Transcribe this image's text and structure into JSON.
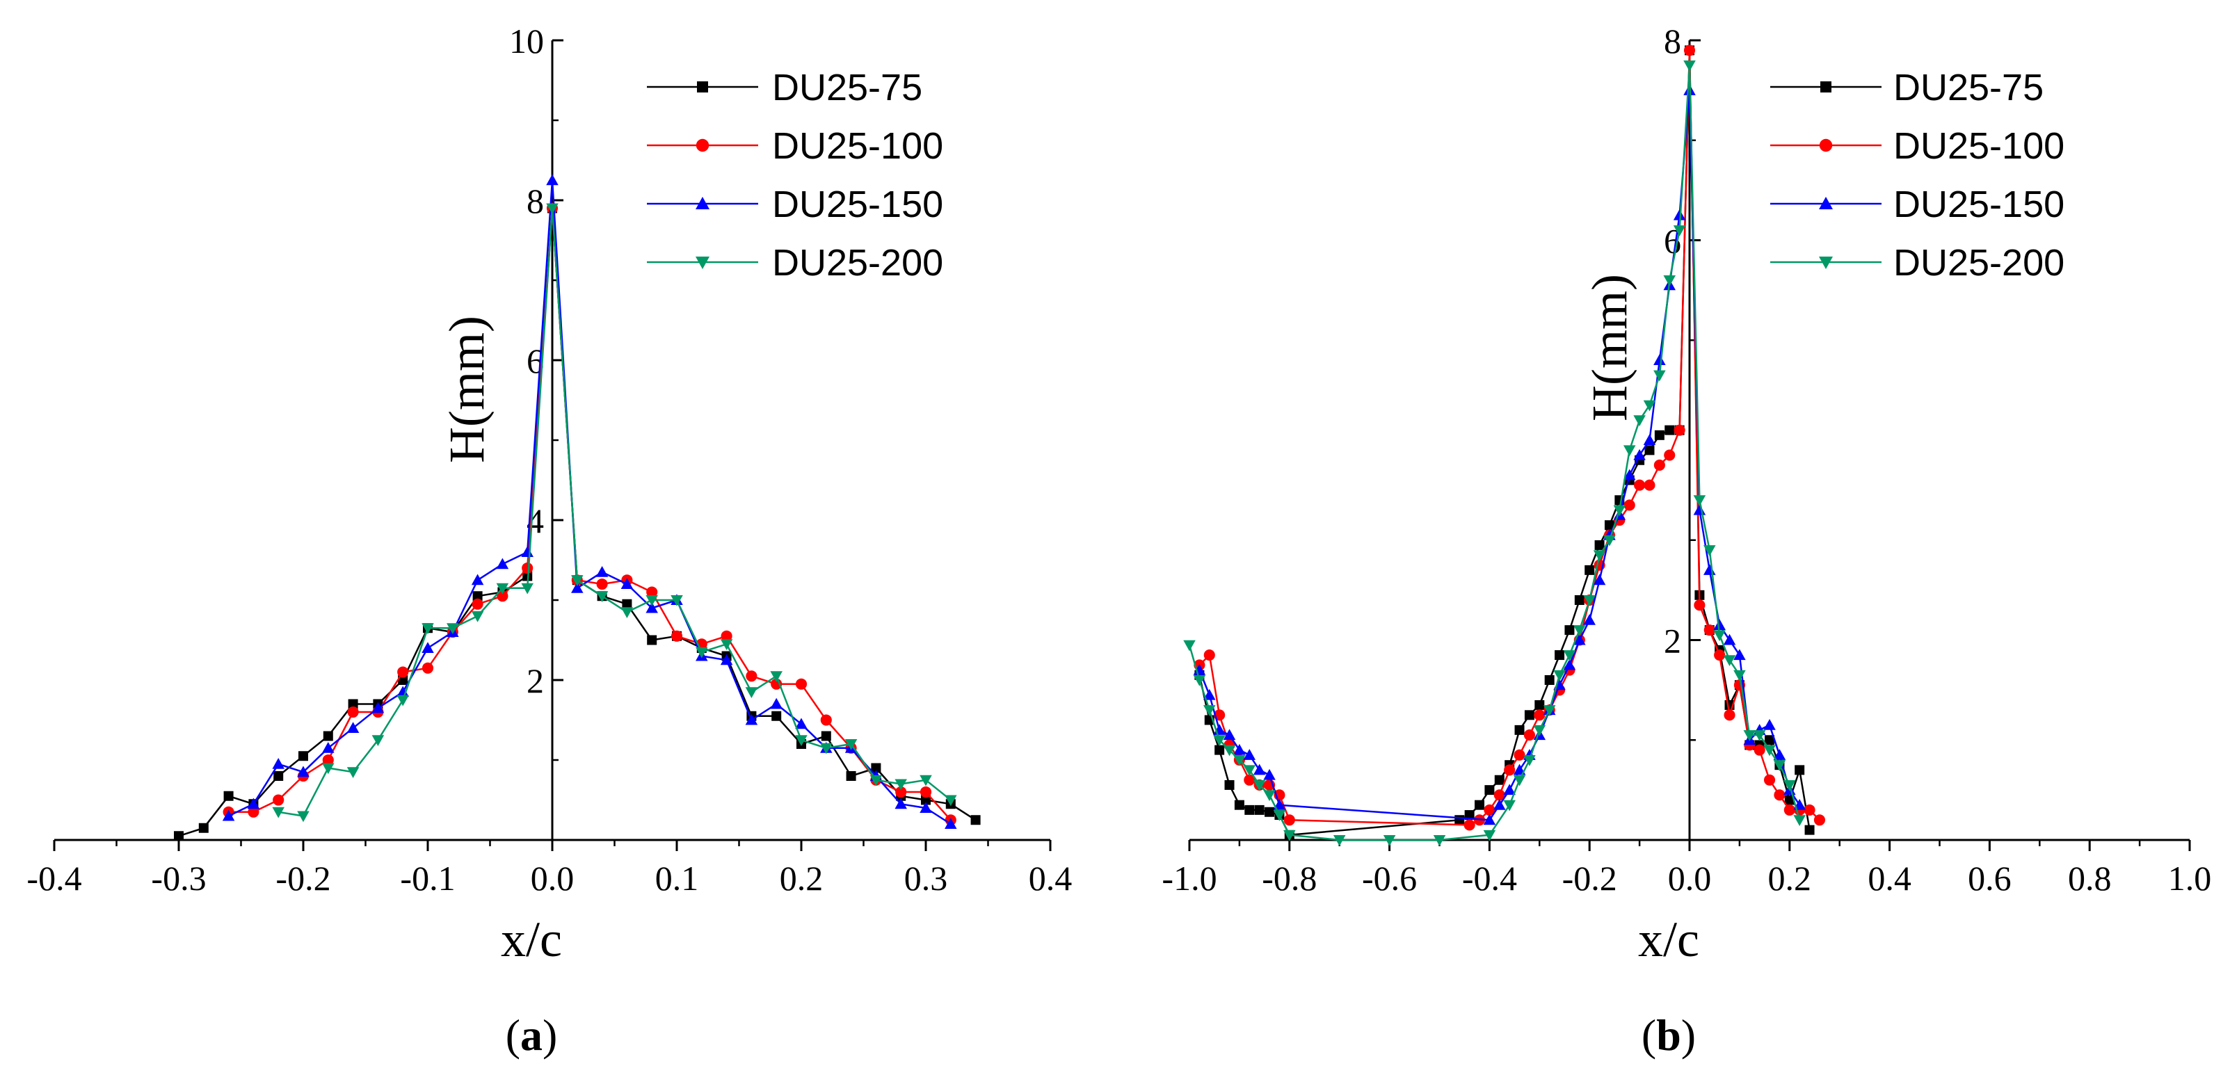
{
  "chart_data": [
    {
      "type": "line",
      "panel_label": "(a)",
      "panel_letter": "a",
      "xlabel": "x/c",
      "ylabel": "H(mm)",
      "xlim": [
        -0.4,
        0.4
      ],
      "ylim": [
        0,
        10
      ],
      "xticks": [
        -0.4,
        -0.3,
        -0.2,
        -0.1,
        0.0,
        0.1,
        0.2,
        0.3,
        0.4
      ],
      "xtick_labels": [
        "-0.4",
        "-0.3",
        "-0.2",
        "-0.1",
        "0.0",
        "0.1",
        "0.2",
        "0.3",
        "0.4"
      ],
      "yticks": [
        2,
        4,
        6,
        8,
        10
      ],
      "ytick_labels": [
        "2",
        "4",
        "6",
        "8",
        "10"
      ],
      "legend_position": "top-right",
      "series": [
        {
          "name": "DU25-75",
          "color": "#000000",
          "marker": "square",
          "x": [
            -0.3,
            -0.28,
            -0.26,
            -0.24,
            -0.22,
            -0.2,
            -0.18,
            -0.16,
            -0.14,
            -0.12,
            -0.1,
            -0.08,
            -0.06,
            -0.04,
            -0.02,
            0.0,
            0.02,
            0.04,
            0.06,
            0.08,
            0.1,
            0.12,
            0.14,
            0.16,
            0.18,
            0.2,
            0.22,
            0.24,
            0.26,
            0.28,
            0.3,
            0.32,
            0.34
          ],
          "y": [
            0.05,
            0.15,
            0.55,
            0.45,
            0.8,
            1.05,
            1.3,
            1.7,
            1.7,
            2.0,
            2.65,
            2.6,
            3.05,
            3.1,
            3.3,
            7.9,
            3.25,
            3.05,
            2.95,
            2.5,
            2.55,
            2.4,
            2.3,
            1.55,
            1.55,
            1.2,
            1.3,
            0.8,
            0.9,
            0.55,
            0.5,
            0.45,
            0.25
          ]
        },
        {
          "name": "DU25-100",
          "color": "#ff0000",
          "marker": "circle",
          "x": [
            -0.26,
            -0.24,
            -0.22,
            -0.2,
            -0.18,
            -0.16,
            -0.14,
            -0.12,
            -0.1,
            -0.08,
            -0.06,
            -0.04,
            -0.02,
            0.0,
            0.02,
            0.04,
            0.06,
            0.08,
            0.1,
            0.12,
            0.14,
            0.16,
            0.18,
            0.2,
            0.22,
            0.24,
            0.26,
            0.28,
            0.3,
            0.32
          ],
          "y": [
            0.35,
            0.35,
            0.5,
            0.8,
            1.0,
            1.6,
            1.6,
            2.1,
            2.15,
            2.6,
            2.95,
            3.05,
            3.4,
            7.9,
            3.25,
            3.2,
            3.25,
            3.1,
            2.55,
            2.45,
            2.55,
            2.05,
            1.95,
            1.95,
            1.5,
            1.15,
            0.75,
            0.6,
            0.6,
            0.25
          ]
        },
        {
          "name": "DU25-150",
          "color": "#0000ff",
          "marker": "triangle-up",
          "x": [
            -0.26,
            -0.24,
            -0.22,
            -0.2,
            -0.18,
            -0.16,
            -0.14,
            -0.12,
            -0.1,
            -0.08,
            -0.06,
            -0.04,
            -0.02,
            0.0,
            0.02,
            0.04,
            0.06,
            0.08,
            0.1,
            0.12,
            0.14,
            0.16,
            0.18,
            0.2,
            0.22,
            0.24,
            0.26,
            0.28,
            0.3,
            0.32
          ],
          "y": [
            0.3,
            0.45,
            0.95,
            0.85,
            1.15,
            1.4,
            1.65,
            1.85,
            2.4,
            2.6,
            3.25,
            3.45,
            3.6,
            8.25,
            3.15,
            3.35,
            3.2,
            2.9,
            3.0,
            2.3,
            2.25,
            1.5,
            1.7,
            1.45,
            1.15,
            1.15,
            0.8,
            0.45,
            0.4,
            0.2
          ]
        },
        {
          "name": "DU25-200",
          "color": "#009966",
          "marker": "triangle-down",
          "x": [
            -0.22,
            -0.2,
            -0.18,
            -0.16,
            -0.14,
            -0.12,
            -0.1,
            -0.08,
            -0.06,
            -0.04,
            -0.02,
            0.0,
            0.02,
            0.04,
            0.06,
            0.08,
            0.1,
            0.12,
            0.14,
            0.16,
            0.18,
            0.2,
            0.22,
            0.24,
            0.26,
            0.28,
            0.3,
            0.32
          ],
          "y": [
            0.35,
            0.3,
            0.9,
            0.85,
            1.25,
            1.75,
            2.65,
            2.65,
            2.8,
            3.15,
            3.15,
            7.9,
            3.25,
            3.05,
            2.85,
            3.0,
            3.0,
            2.35,
            2.45,
            1.85,
            2.05,
            1.25,
            1.15,
            1.2,
            0.75,
            0.7,
            0.75,
            0.5
          ]
        }
      ]
    },
    {
      "type": "line",
      "panel_label": "(b)",
      "panel_letter": "b",
      "xlabel": "x/c",
      "ylabel": "H(mm)",
      "xlim": [
        -1.0,
        1.0
      ],
      "ylim": [
        0,
        8
      ],
      "xticks": [
        -1.0,
        -0.8,
        -0.6,
        -0.4,
        -0.2,
        0.0,
        0.2,
        0.4,
        0.6,
        0.8,
        1.0
      ],
      "xtick_labels": [
        "-1.0",
        "-0.8",
        "-0.6",
        "-0.4",
        "-0.2",
        "0.0",
        "0.2",
        "0.4",
        "0.6",
        "0.8",
        "1.0"
      ],
      "yticks": [
        2,
        6,
        8
      ],
      "ytick_labels": [
        "2",
        "6",
        "8"
      ],
      "legend_position": "top-right",
      "series": [
        {
          "name": "DU25-75",
          "color": "#000000",
          "marker": "square",
          "x": [
            -0.98,
            -0.96,
            -0.94,
            -0.92,
            -0.9,
            -0.88,
            -0.86,
            -0.84,
            -0.82,
            -0.8,
            -0.46,
            -0.44,
            -0.42,
            -0.4,
            -0.38,
            -0.36,
            -0.34,
            -0.32,
            -0.3,
            -0.28,
            -0.26,
            -0.24,
            -0.22,
            -0.2,
            -0.18,
            -0.16,
            -0.14,
            -0.12,
            -0.1,
            -0.08,
            -0.06,
            -0.04,
            -0.02,
            0.0,
            0.02,
            0.04,
            0.06,
            0.08,
            0.1,
            0.12,
            0.14,
            0.16,
            0.18,
            0.2,
            0.22,
            0.24
          ],
          "y": [
            1.65,
            1.2,
            0.9,
            0.55,
            0.35,
            0.3,
            0.3,
            0.28,
            0.25,
            0.05,
            0.2,
            0.25,
            0.35,
            0.5,
            0.6,
            0.75,
            1.1,
            1.25,
            1.35,
            1.6,
            1.85,
            2.1,
            2.4,
            2.7,
            2.95,
            3.15,
            3.4,
            3.6,
            3.8,
            3.9,
            4.05,
            4.1,
            4.1,
            7.9,
            2.45,
            2.1,
            1.9,
            1.35,
            1.55,
            0.95,
            0.95,
            1.0,
            0.75,
            0.4,
            0.7,
            0.1
          ]
        },
        {
          "name": "DU25-100",
          "color": "#ff0000",
          "marker": "circle",
          "x": [
            -0.98,
            -0.96,
            -0.94,
            -0.92,
            -0.9,
            -0.88,
            -0.86,
            -0.84,
            -0.82,
            -0.8,
            -0.44,
            -0.42,
            -0.4,
            -0.38,
            -0.36,
            -0.34,
            -0.32,
            -0.3,
            -0.28,
            -0.26,
            -0.24,
            -0.22,
            -0.2,
            -0.18,
            -0.16,
            -0.14,
            -0.12,
            -0.1,
            -0.08,
            -0.06,
            -0.04,
            -0.02,
            0.0,
            0.02,
            0.04,
            0.06,
            0.08,
            0.1,
            0.12,
            0.14,
            0.16,
            0.18,
            0.2,
            0.22,
            0.24,
            0.26
          ],
          "y": [
            1.75,
            1.85,
            1.25,
            0.95,
            0.8,
            0.6,
            0.55,
            0.55,
            0.45,
            0.2,
            0.15,
            0.2,
            0.3,
            0.45,
            0.7,
            0.85,
            1.05,
            1.25,
            1.3,
            1.5,
            1.7,
            2.0,
            2.4,
            2.75,
            3.05,
            3.2,
            3.35,
            3.55,
            3.55,
            3.75,
            3.85,
            4.1,
            7.9,
            2.35,
            2.1,
            1.85,
            1.25,
            1.55,
            0.95,
            0.9,
            0.6,
            0.45,
            0.3,
            0.3,
            0.3,
            0.2
          ]
        },
        {
          "name": "DU25-150",
          "color": "#0000ff",
          "marker": "triangle-up",
          "x": [
            -0.98,
            -0.96,
            -0.94,
            -0.92,
            -0.9,
            -0.88,
            -0.86,
            -0.84,
            -0.82,
            -0.4,
            -0.38,
            -0.36,
            -0.34,
            -0.32,
            -0.3,
            -0.28,
            -0.26,
            -0.24,
            -0.22,
            -0.2,
            -0.18,
            -0.16,
            -0.14,
            -0.12,
            -0.1,
            -0.08,
            -0.06,
            -0.04,
            -0.02,
            0.0,
            0.02,
            0.04,
            0.06,
            0.08,
            0.1,
            0.12,
            0.14,
            0.16,
            0.18,
            0.2,
            0.22
          ],
          "y": [
            1.7,
            1.45,
            1.1,
            1.05,
            0.9,
            0.85,
            0.7,
            0.65,
            0.35,
            0.2,
            0.35,
            0.5,
            0.7,
            0.85,
            1.05,
            1.3,
            1.55,
            1.75,
            2.0,
            2.2,
            2.6,
            3.05,
            3.25,
            3.65,
            3.85,
            4.0,
            4.8,
            5.55,
            6.25,
            7.5,
            3.3,
            2.7,
            2.15,
            2.0,
            1.85,
            1.0,
            1.1,
            1.15,
            0.85,
            0.5,
            0.35
          ]
        },
        {
          "name": "DU25-200",
          "color": "#009966",
          "marker": "triangle-down",
          "x": [
            -1.0,
            -0.98,
            -0.96,
            -0.94,
            -0.92,
            -0.9,
            -0.88,
            -0.86,
            -0.84,
            -0.82,
            -0.8,
            -0.7,
            -0.6,
            -0.5,
            -0.4,
            -0.36,
            -0.34,
            -0.32,
            -0.3,
            -0.28,
            -0.26,
            -0.24,
            -0.22,
            -0.2,
            -0.18,
            -0.16,
            -0.14,
            -0.12,
            -0.1,
            -0.08,
            -0.06,
            -0.04,
            -0.02,
            0.0,
            0.02,
            0.04,
            0.06,
            0.08,
            0.1,
            0.12,
            0.14,
            0.16,
            0.18,
            0.2,
            0.22
          ],
          "y": [
            1.95,
            1.6,
            1.3,
            1.0,
            0.9,
            0.8,
            0.7,
            0.55,
            0.45,
            0.25,
            0.05,
            0.0,
            0.0,
            0.0,
            0.05,
            0.35,
            0.6,
            0.8,
            1.1,
            1.3,
            1.65,
            1.85,
            2.1,
            2.4,
            2.85,
            3.0,
            3.3,
            3.9,
            4.2,
            4.35,
            4.65,
            5.6,
            6.1,
            7.75,
            3.4,
            2.9,
            2.05,
            1.8,
            1.65,
            1.05,
            1.05,
            0.9,
            0.75,
            0.55,
            0.2
          ]
        }
      ]
    }
  ]
}
